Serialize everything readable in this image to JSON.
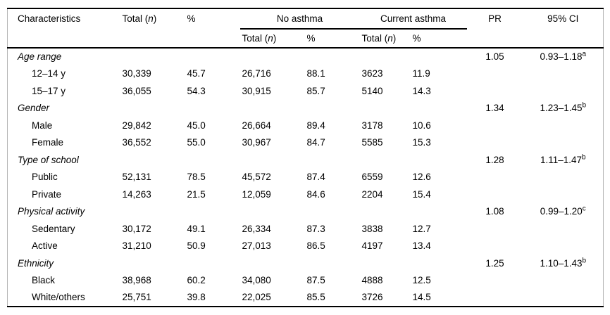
{
  "table": {
    "header": {
      "characteristics": "Characteristics",
      "total_prefix": "Total (",
      "total_n_letter": "n",
      "total_suffix": ")",
      "percent": "%",
      "group_no_asthma": "No asthma",
      "group_current_asthma": "Current asthma",
      "pr": "PR",
      "ci": "95% CI"
    },
    "sections": [
      {
        "label": "Age range",
        "pr": "1.05",
        "ci": "0.93–1.18",
        "ci_note": "a",
        "rows": [
          {
            "label": "12–14 y",
            "total_n": "30,339",
            "percent": "45.7",
            "no_asthma_n": "26,716",
            "no_asthma_pct": "88.1",
            "current_asthma_n": "3623",
            "current_asthma_pct": "11.9"
          },
          {
            "label": "15–17 y",
            "total_n": "36,055",
            "percent": "54.3",
            "no_asthma_n": "30,915",
            "no_asthma_pct": "85.7",
            "current_asthma_n": "5140",
            "current_asthma_pct": "14.3"
          }
        ]
      },
      {
        "label": "Gender",
        "pr": "1.34",
        "ci": "1.23–1.45",
        "ci_note": "b",
        "rows": [
          {
            "label": "Male",
            "total_n": "29,842",
            "percent": "45.0",
            "no_asthma_n": "26,664",
            "no_asthma_pct": "89.4",
            "current_asthma_n": "3178",
            "current_asthma_pct": "10.6"
          },
          {
            "label": "Female",
            "total_n": "36,552",
            "percent": "55.0",
            "no_asthma_n": "30,967",
            "no_asthma_pct": "84.7",
            "current_asthma_n": "5585",
            "current_asthma_pct": "15.3"
          }
        ]
      },
      {
        "label": "Type of school",
        "pr": "1.28",
        "ci": "1.11–1.47",
        "ci_note": "b",
        "rows": [
          {
            "label": "Public",
            "total_n": "52,131",
            "percent": "78.5",
            "no_asthma_n": "45,572",
            "no_asthma_pct": "87.4",
            "current_asthma_n": "6559",
            "current_asthma_pct": "12.6"
          },
          {
            "label": "Private",
            "total_n": "14,263",
            "percent": "21.5",
            "no_asthma_n": "12,059",
            "no_asthma_pct": "84.6",
            "current_asthma_n": "2204",
            "current_asthma_pct": "15.4"
          }
        ]
      },
      {
        "label": "Physical activity",
        "pr": "1.08",
        "ci": "0.99–1.20",
        "ci_note": "c",
        "rows": [
          {
            "label": "Sedentary",
            "total_n": "30,172",
            "percent": "49.1",
            "no_asthma_n": "26,334",
            "no_asthma_pct": "87.3",
            "current_asthma_n": "3838",
            "current_asthma_pct": "12.7"
          },
          {
            "label": "Active",
            "total_n": "31,210",
            "percent": "50.9",
            "no_asthma_n": "27,013",
            "no_asthma_pct": "86.5",
            "current_asthma_n": "4197",
            "current_asthma_pct": "13.4"
          }
        ]
      },
      {
        "label": "Ethnicity",
        "pr": "1.25",
        "ci": "1.10–1.43",
        "ci_note": "b",
        "rows": [
          {
            "label": "Black",
            "total_n": "38,968",
            "percent": "60.2",
            "no_asthma_n": "34,080",
            "no_asthma_pct": "87.5",
            "current_asthma_n": "4888",
            "current_asthma_pct": "12.5"
          },
          {
            "label": "White/others",
            "total_n": "25,751",
            "percent": "39.8",
            "no_asthma_n": "22,025",
            "no_asthma_pct": "85.5",
            "current_asthma_n": "3726",
            "current_asthma_pct": "14.5"
          }
        ]
      }
    ]
  }
}
